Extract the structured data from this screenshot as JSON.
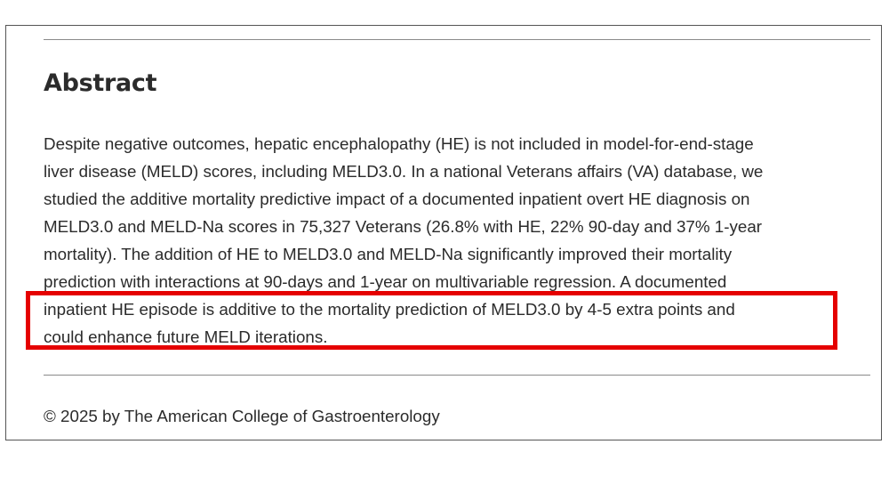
{
  "section": {
    "heading": "Abstract",
    "lines": [
      "Despite negative outcomes, hepatic encephalopathy (HE) is not included in model-for-end-stage",
      "liver disease (MELD) scores, including MELD3.0. In a national Veterans affairs (VA) database, we",
      "studied the additive mortality predictive impact of a documented inpatient overt HE diagnosis on",
      "MELD3.0 and MELD-Na scores in 75,327 Veterans (26.8% with HE, 22% 90-day and 37% 1-year",
      "mortality). The addition of HE to MELD3.0 and MELD-Na significantly improved their mortality",
      "prediction with interactions at 90-days and 1-year on multivariable regression. A documented",
      "inpatient HE episode is additive to the mortality prediction of MELD3.0 by 4-5 extra points and",
      "could enhance future MELD iterations."
    ],
    "copyright": "© 2025 by The American College of Gastroenterology"
  },
  "colors": {
    "highlight": "#e50000",
    "text": "#2b2b2b",
    "rule": "#8a8a8a"
  }
}
